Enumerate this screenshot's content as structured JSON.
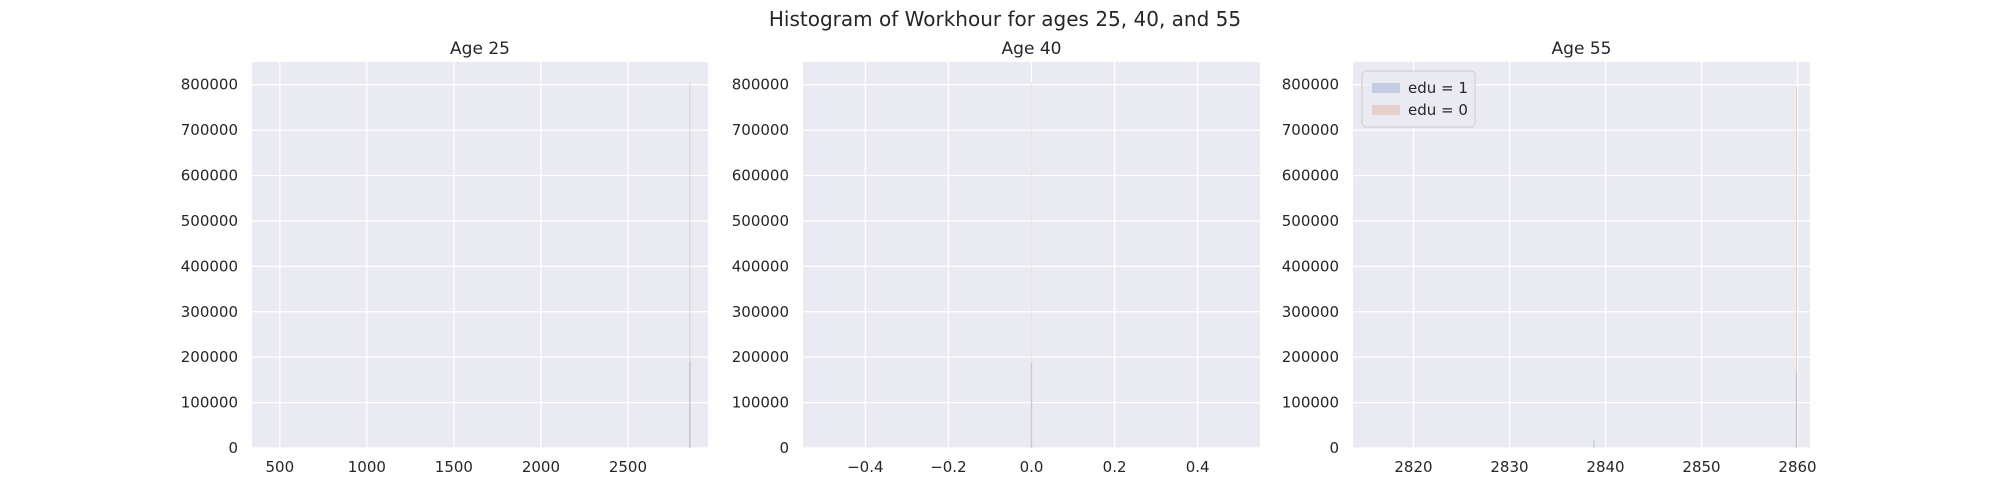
{
  "figure": {
    "title": "Histogram of Workhour for ages 25, 40, and 55",
    "background": "#ffffff",
    "axes_background": "#eaeaf2",
    "grid_color": "#ffffff"
  },
  "legend": {
    "entries": [
      {
        "label": "edu = 1",
        "color": "#4c72b0"
      },
      {
        "label": "edu = 0",
        "color": "#dd8452"
      }
    ]
  },
  "chart_data": [
    {
      "type": "bar",
      "title": "Age 25",
      "xlabel": "",
      "ylabel": "",
      "xlim": [
        340,
        2960
      ],
      "ylim": [
        0,
        850000
      ],
      "grid": true,
      "xticks": [
        500,
        1000,
        1500,
        2000,
        2500
      ],
      "xtick_labels": [
        "500",
        "1000",
        "1500",
        "2000",
        "2500"
      ],
      "yticks": [
        0,
        100000,
        200000,
        300000,
        400000,
        500000,
        600000,
        700000,
        800000
      ],
      "ytick_labels": [
        "0",
        "100000",
        "200000",
        "300000",
        "400000",
        "500000",
        "600000",
        "700000",
        "800000"
      ],
      "series": [
        {
          "name": "edu = 1",
          "color": "#4c72b0",
          "bars": [
            {
              "x": 2856,
              "width": 6,
              "value": 190000
            }
          ]
        },
        {
          "name": "edu = 0",
          "color": "#dd8452",
          "bars": [
            {
              "x": 2856,
              "width": 6,
              "value": 805000
            }
          ]
        }
      ]
    },
    {
      "type": "bar",
      "title": "Age 40",
      "xlabel": "",
      "ylabel": "",
      "xlim": [
        -0.55,
        0.55
      ],
      "ylim": [
        0,
        850000
      ],
      "grid": true,
      "xticks": [
        -0.4,
        -0.2,
        0.0,
        0.2,
        0.4
      ],
      "xtick_labels": [
        "−0.4",
        "−0.2",
        "0.0",
        "0.2",
        "0.4"
      ],
      "yticks": [
        0,
        100000,
        200000,
        300000,
        400000,
        500000,
        600000,
        700000,
        800000
      ],
      "ytick_labels": [
        "0",
        "100000",
        "200000",
        "300000",
        "400000",
        "500000",
        "600000",
        "700000",
        "800000"
      ],
      "series": [
        {
          "name": "edu = 1",
          "color": "#4c72b0",
          "bars": [
            {
              "x": 0.0,
              "width": 0.0015,
              "value": 188000
            }
          ]
        },
        {
          "name": "edu = 0",
          "color": "#dd8452",
          "bars": [
            {
              "x": 0.0,
              "width": 0.0015,
              "value": 805000
            }
          ]
        }
      ]
    },
    {
      "type": "bar",
      "title": "Age 55",
      "xlabel": "",
      "ylabel": "",
      "xlim": [
        2813.7,
        2861.3
      ],
      "ylim": [
        0,
        850000
      ],
      "grid": true,
      "legend": "upper left",
      "xticks": [
        2820,
        2830,
        2840,
        2850,
        2860
      ],
      "xtick_labels": [
        "2820",
        "2830",
        "2840",
        "2850",
        "2860"
      ],
      "yticks": [
        0,
        100000,
        200000,
        300000,
        400000,
        500000,
        600000,
        700000,
        800000
      ],
      "ytick_labels": [
        "0",
        "100000",
        "200000",
        "300000",
        "400000",
        "500000",
        "600000",
        "700000",
        "800000"
      ],
      "series": [
        {
          "name": "edu = 1",
          "color": "#4c72b0",
          "bars": [
            {
              "x": 2838.8,
              "width": 0.12,
              "value": 18000
            },
            {
              "x": 2859.9,
              "width": 0.12,
              "value": 168000
            }
          ]
        },
        {
          "name": "edu = 0",
          "color": "#dd8452",
          "bars": [
            {
              "x": 2859.9,
              "width": 0.12,
              "value": 795000
            }
          ]
        }
      ]
    }
  ]
}
